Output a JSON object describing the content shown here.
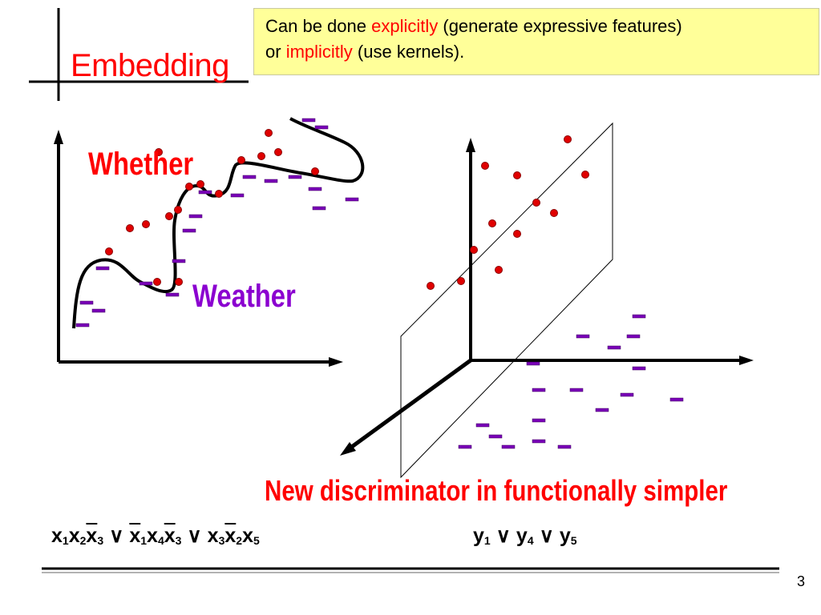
{
  "slide": {
    "title": "Embedding",
    "callout": {
      "line1_pre": "Can be done ",
      "line1_red": "explicitly",
      "line1_post": " (generate expressive features)",
      "line2_pre": "or ",
      "line2_red": "implicitly",
      "line2_post": " (use kernels)."
    },
    "label_whether": "Whether",
    "label_weather": "Weather",
    "caption": "New discriminator in functionally simpler",
    "formula_left": {
      "t1": [
        "x",
        "1",
        "x",
        "2",
        "x",
        "3"
      ],
      "or": "∨",
      "t2": [
        "x",
        "1",
        "x",
        "4",
        "x",
        "3"
      ],
      "t3": [
        "x",
        "3",
        "x",
        "2",
        "x",
        "5"
      ]
    },
    "formula_right": {
      "y1": "y",
      "y1_sub": "1",
      "y4": "y",
      "y4_sub": "4",
      "y5": "y",
      "y5_sub": "5"
    },
    "page_number": "3",
    "colors": {
      "accent_red": "#ff0000",
      "purple": "#8b00d0",
      "callout_bg": "#ffff99"
    }
  }
}
